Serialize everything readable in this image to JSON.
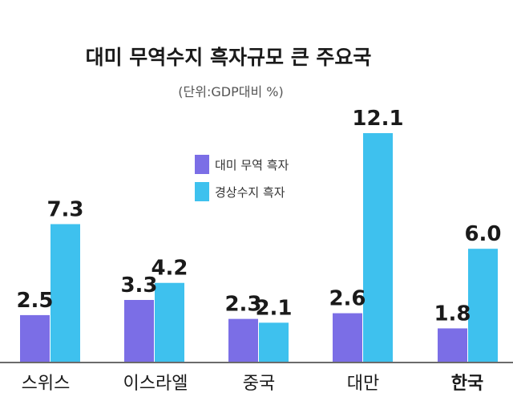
{
  "chart_data": {
    "type": "bar",
    "title": "대미 무역수지 흑자규모 큰 주요국",
    "subtitle": "(단위:GDP대비 %)",
    "categories": [
      "스위스",
      "이스라엘",
      "중국",
      "대만",
      "한국"
    ],
    "series": [
      {
        "name": "대미 무역 흑자",
        "color": "#7b6ee6",
        "values": [
          2.5,
          3.3,
          2.3,
          2.6,
          1.8
        ],
        "labels": [
          "2.5",
          "3.3",
          "2.3",
          "2.6",
          "1.8"
        ]
      },
      {
        "name": "경상수지 흑자",
        "color": "#3ec1ee",
        "values": [
          7.3,
          4.2,
          2.1,
          12.1,
          6.0
        ],
        "labels": [
          "7.3",
          "4.2",
          "2.1",
          "12.1",
          "6.0"
        ]
      }
    ],
    "ylim": [
      0,
      13
    ],
    "grid": false,
    "legend": "top-center",
    "highlight_category": "한국"
  }
}
